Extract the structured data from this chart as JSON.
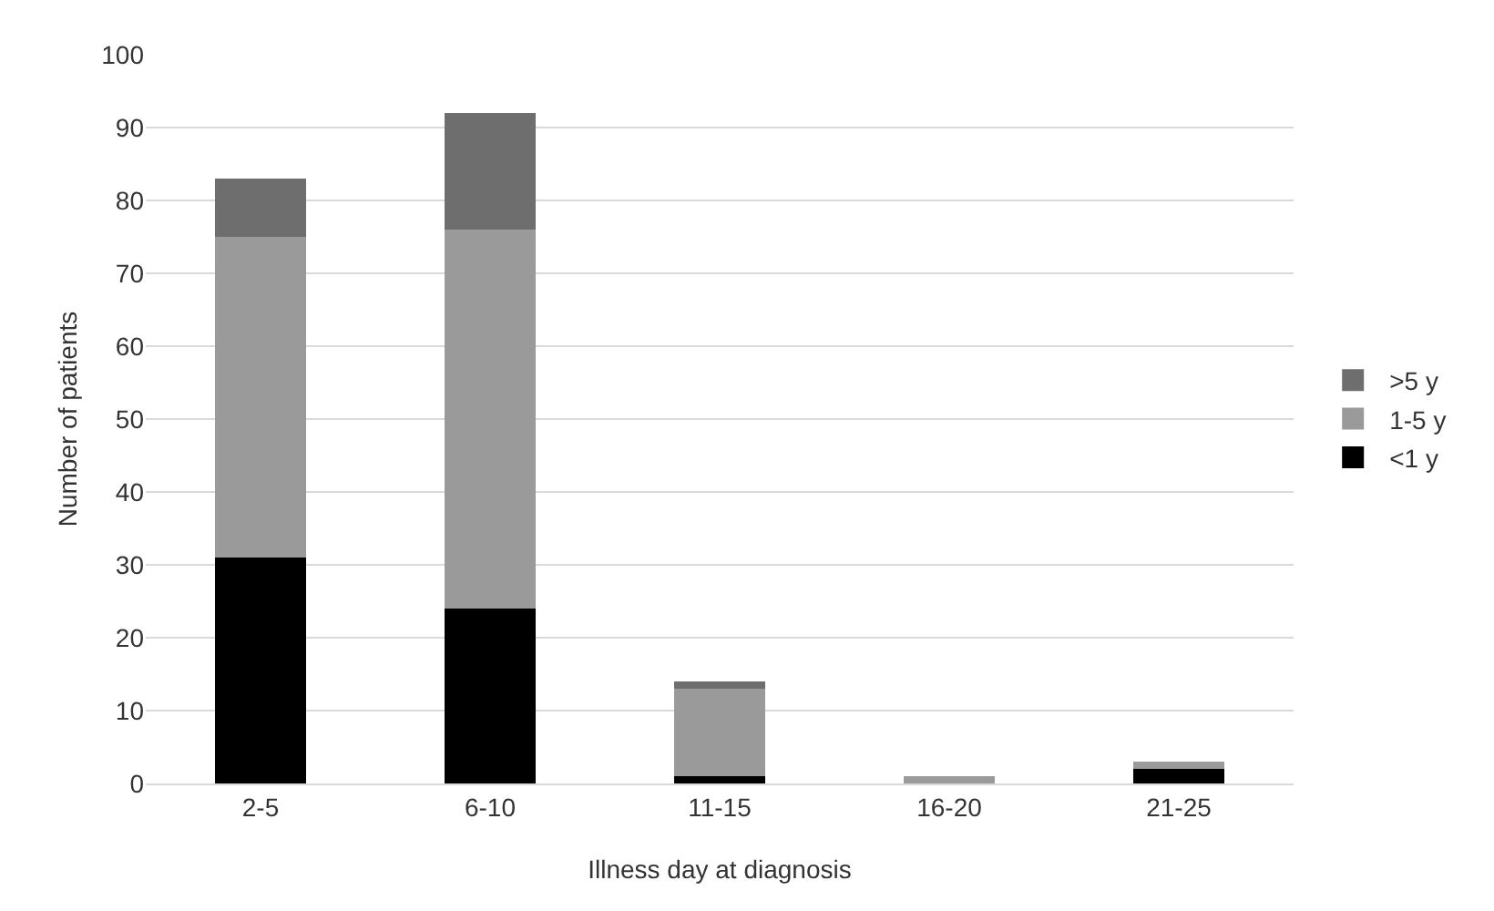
{
  "chart_data": {
    "type": "bar",
    "stacked": true,
    "xlabel": "Illness day at diagnosis",
    "ylabel": "Number of patients",
    "categories": [
      "2-5",
      "6-10",
      "11-15",
      "16-20",
      "21-25"
    ],
    "series": [
      {
        "name": "<1 y",
        "color": "#000000",
        "values": [
          31,
          24,
          1,
          0,
          2
        ]
      },
      {
        "name": "1-5 y",
        "color": "#9a9a9a",
        "values": [
          44,
          52,
          12,
          1,
          1
        ]
      },
      {
        "name": ">5 y",
        "color": "#6e6e6e",
        "values": [
          8,
          16,
          1,
          0,
          0
        ]
      }
    ],
    "ylim": [
      0,
      100
    ],
    "yticks": [
      0,
      10,
      20,
      30,
      40,
      50,
      60,
      70,
      80,
      90,
      100
    ],
    "grid": "y",
    "legend": "right"
  }
}
